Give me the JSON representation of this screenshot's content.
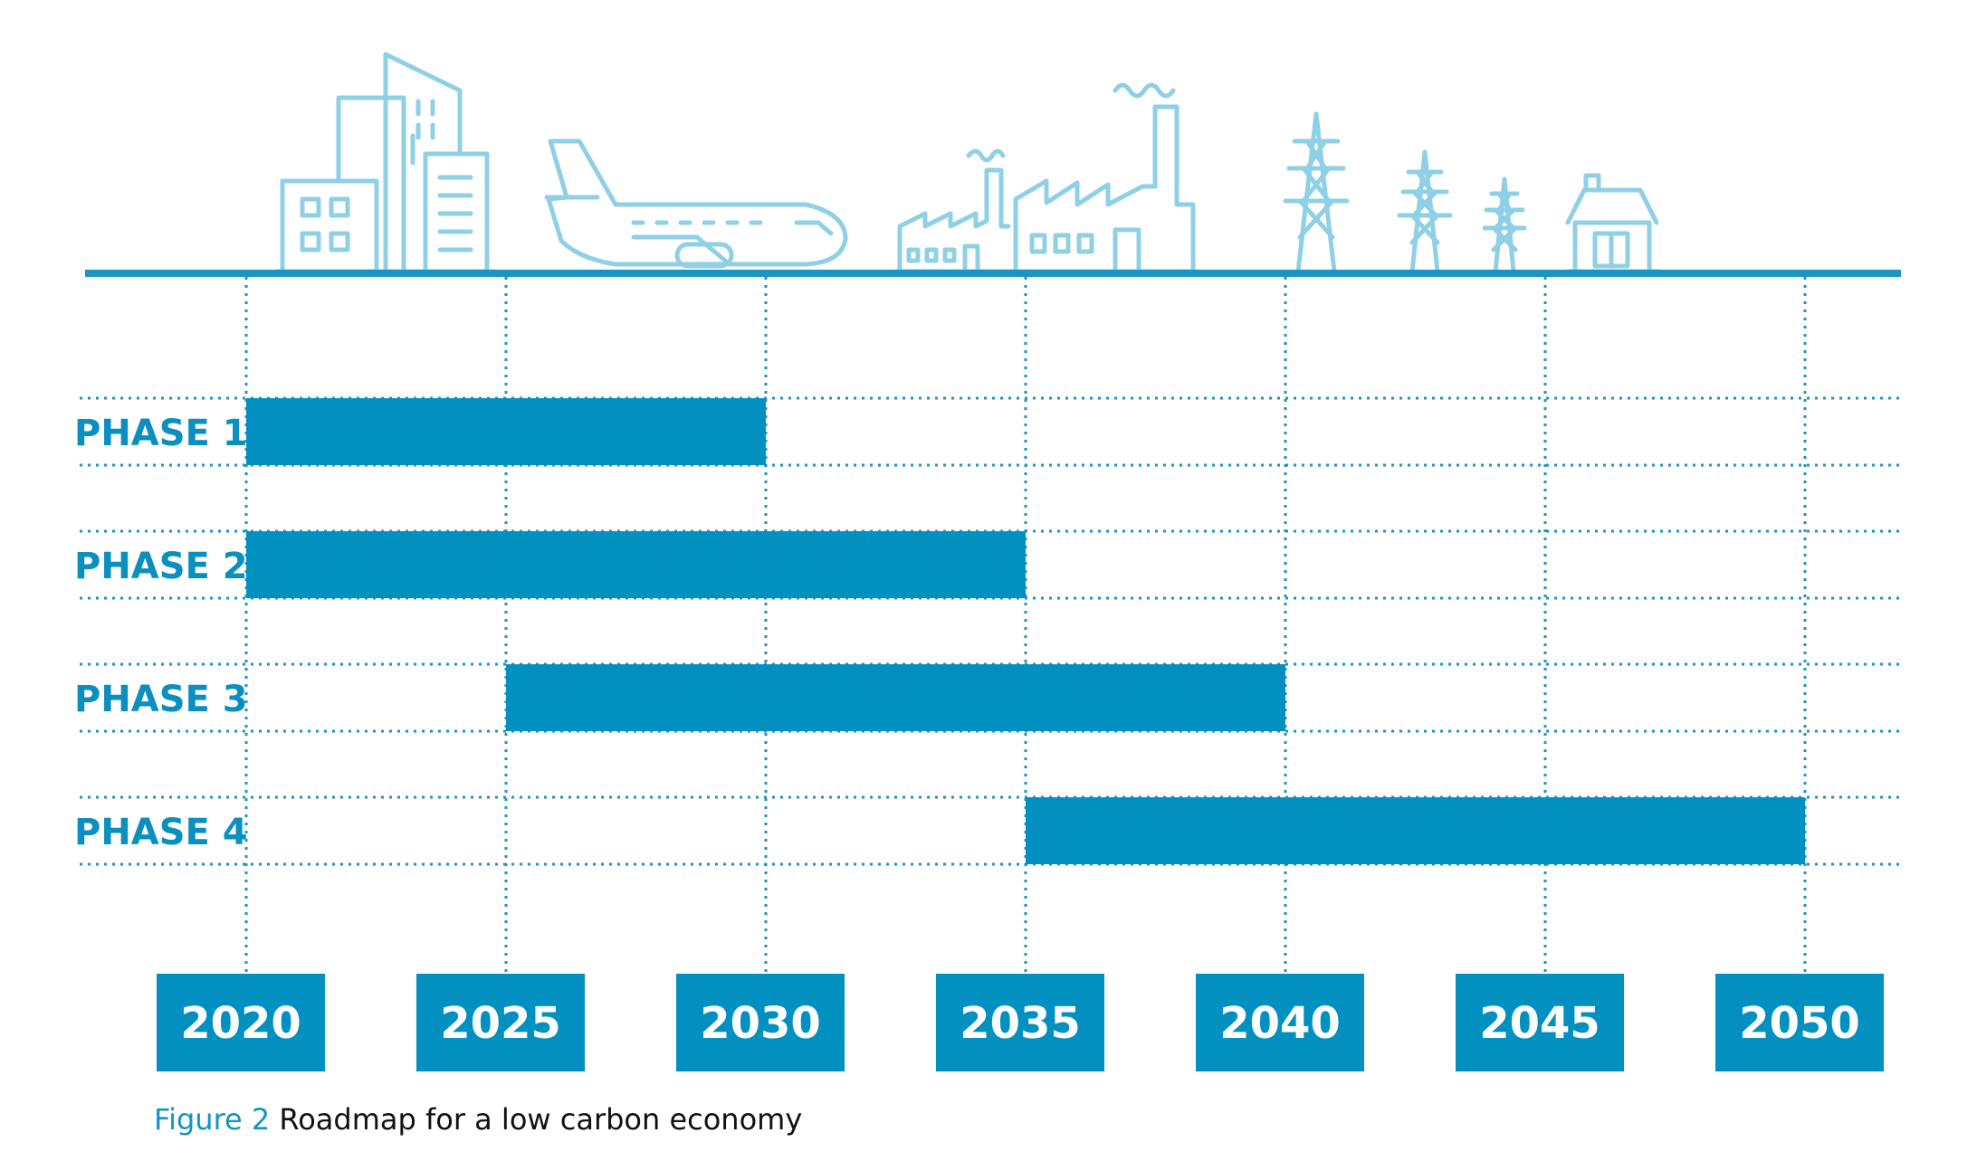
{
  "colors": {
    "bar": "#0290c0",
    "phase_text": "#0a8fbf",
    "line": "#1a95c2",
    "icon": "#8fd0e6",
    "year_box": "#0290c0",
    "year_text": "#ffffff"
  },
  "icons": [
    "city-buildings-icon",
    "airplane-icon",
    "factory-icon",
    "power-pylons-icon",
    "house-icon"
  ],
  "chart_data": {
    "type": "gantt",
    "x_ticks": [
      2020,
      2025,
      2030,
      2035,
      2040,
      2045,
      2050
    ],
    "x_tick_labels": [
      "2020",
      "2025",
      "2030",
      "2035",
      "2040",
      "2045",
      "2050"
    ],
    "xlim": [
      2020,
      2050
    ],
    "grid": true,
    "series": [
      {
        "name": "PHASE 1",
        "start": 2020,
        "end": 2030
      },
      {
        "name": "PHASE 2",
        "start": 2020,
        "end": 2035
      },
      {
        "name": "PHASE 3",
        "start": 2025,
        "end": 2040
      },
      {
        "name": "PHASE 4",
        "start": 2035,
        "end": 2050
      }
    ]
  },
  "caption": {
    "figure_label": "Figure 2",
    "text": "Roadmap for a low carbon economy"
  }
}
